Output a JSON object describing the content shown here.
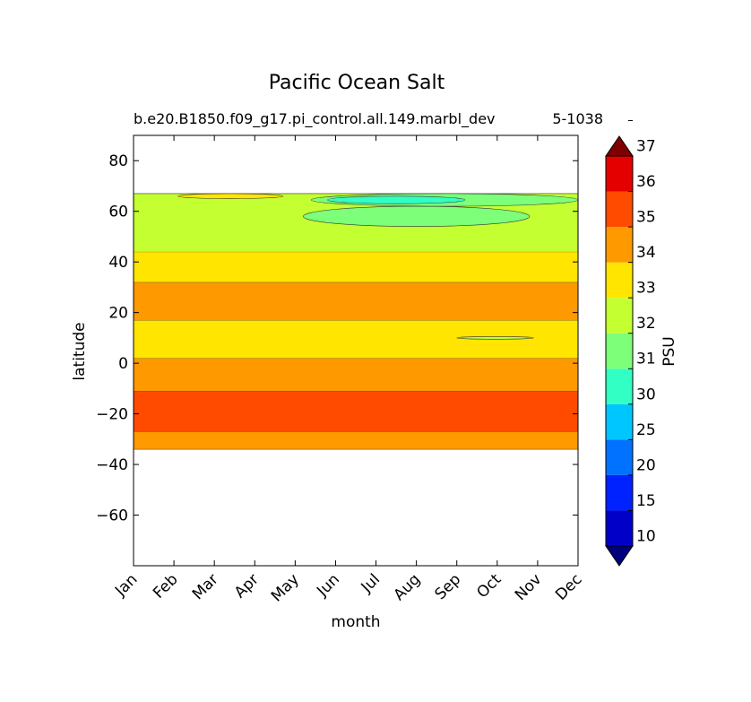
{
  "chart_data": {
    "type": "contour",
    "title": "Pacific Ocean Salt",
    "subtitle_left": "b.e20.B1850.f09_g17.pi_control.all.149.marbl_dev",
    "subtitle_right": "5-1038",
    "xlabel": "month",
    "ylabel": "latitude",
    "x_categories": [
      "Jan",
      "Feb",
      "Mar",
      "Apr",
      "May",
      "Jun",
      "Jul",
      "Aug",
      "Sep",
      "Oct",
      "Nov",
      "Dec"
    ],
    "ylim": [
      -80,
      90
    ],
    "yticks": [
      80,
      60,
      40,
      20,
      0,
      -20,
      -40,
      -60
    ],
    "grid": false,
    "colorbar": {
      "label": "PSU",
      "levels": [
        10,
        15,
        20,
        25,
        30,
        31,
        32,
        33,
        34,
        35,
        36,
        37
      ],
      "level_labels": [
        "10",
        "15",
        "20",
        "25",
        "30",
        "31",
        "32",
        "33",
        "34",
        "35",
        "36",
        "37"
      ],
      "colors": [
        "#00007f",
        "#0000c8",
        "#0022ff",
        "#0072ff",
        "#00c6ff",
        "#32ffc4",
        "#7dff7a",
        "#c4ff32",
        "#ffe500",
        "#ff9900",
        "#ff4b00",
        "#e50000",
        "#7f0000"
      ],
      "extend": "both"
    },
    "bands": [
      {
        "range": "34-35",
        "color": "#ff9900",
        "lat_from": -34,
        "lat_to": -27
      },
      {
        "range": "35-36",
        "color": "#ff4b00",
        "lat_from": -27,
        "lat_to": -11
      },
      {
        "range": "34-35",
        "color": "#ff9900",
        "lat_from": -11,
        "lat_to": 2
      },
      {
        "range": "33-34",
        "color": "#ffe500",
        "lat_from": 2,
        "lat_to": 17
      },
      {
        "range": "34-35",
        "color": "#ff9900",
        "lat_from": 17,
        "lat_to": 32
      },
      {
        "range": "33-34",
        "color": "#ffe500",
        "lat_from": 32,
        "lat_to": 44
      },
      {
        "range": "32-33",
        "color": "#c4ff32",
        "lat_from": 44,
        "lat_to": 67
      }
    ],
    "patches": [
      {
        "range": "33-34",
        "color": "#ffe500",
        "month_from": 1.1,
        "month_to": 3.7,
        "lat_from": 65,
        "lat_to": 67
      },
      {
        "range": "31-32",
        "color": "#7dff7a",
        "month_from": 4.2,
        "month_to": 9.8,
        "lat_from": 54,
        "lat_to": 62
      },
      {
        "range": "31-32",
        "color": "#7dff7a",
        "month_from": 4.4,
        "month_to": 11,
        "lat_from": 62,
        "lat_to": 67
      },
      {
        "range": "30-31",
        "color": "#32ffc4",
        "month_from": 4.8,
        "month_to": 8.2,
        "lat_from": 63,
        "lat_to": 66
      },
      {
        "range": "32-33",
        "color": "#c4ff32",
        "month_from": 8,
        "month_to": 9.9,
        "lat_from": 9.5,
        "lat_to": 10.5
      }
    ]
  }
}
